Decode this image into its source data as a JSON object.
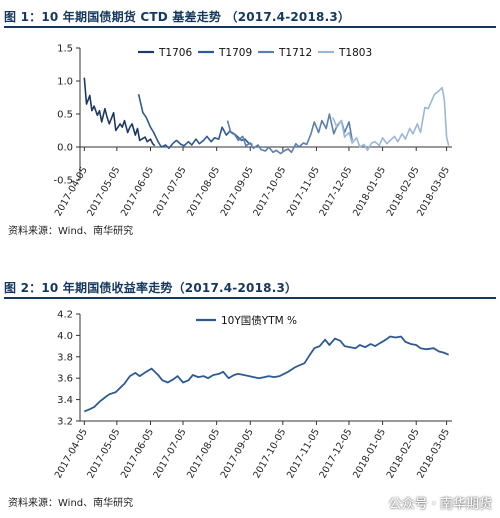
{
  "figure1": {
    "title": "图 1：10 年期国债期货 CTD 基差走势 （2017.4-2018.3）",
    "source": "资料来源：Wind、南华研究"
  },
  "figure2": {
    "title": "图 2：10 年期国债收益率走势（2017.4-2018.3）",
    "source": "资料来源：Wind、南华研究"
  },
  "watermark": "公众号 · 南华期货",
  "chart_data": [
    {
      "type": "line",
      "title": "",
      "xlabel": "",
      "ylabel": "",
      "x_ticks": [
        "2017-04-05",
        "2017-05-05",
        "2017-06-05",
        "2017-07-05",
        "2017-08-05",
        "2017-09-05",
        "2017-10-05",
        "2017-11-05",
        "2017-12-05",
        "2018-01-05",
        "2018-02-05",
        "2018-03-05"
      ],
      "y_ticks": [
        "-0.5",
        "0.0",
        "0.5",
        "1.0",
        "1.5"
      ],
      "ylim": [
        -0.5,
        1.5
      ],
      "xlim": [
        "2017-04-01",
        "2018-03-10"
      ],
      "grid": false,
      "legend_position": "top",
      "series": [
        {
          "name": "T1706",
          "color": "#1f3864",
          "x": [
            "2017-04-05",
            "2017-04-07",
            "2017-04-10",
            "2017-04-12",
            "2017-04-14",
            "2017-04-17",
            "2017-04-19",
            "2017-04-21",
            "2017-04-24",
            "2017-04-26",
            "2017-04-28",
            "2017-05-02",
            "2017-05-04",
            "2017-05-08",
            "2017-05-10",
            "2017-05-12",
            "2017-05-15",
            "2017-05-17",
            "2017-05-19",
            "2017-05-22",
            "2017-05-24",
            "2017-05-26",
            "2017-05-31",
            "2017-06-02",
            "2017-06-05",
            "2017-06-07",
            "2017-06-09"
          ],
          "y": [
            1.05,
            0.65,
            0.78,
            0.55,
            0.62,
            0.48,
            0.55,
            0.38,
            0.58,
            0.45,
            0.35,
            0.52,
            0.25,
            0.35,
            0.3,
            0.4,
            0.22,
            0.3,
            0.35,
            0.18,
            0.28,
            0.1,
            0.15,
            0.08,
            0.12,
            0.05,
            0.02
          ]
        },
        {
          "name": "T1709",
          "color": "#2e5a93",
          "x": [
            "2017-05-25",
            "2017-05-29",
            "2017-06-01",
            "2017-06-05",
            "2017-06-08",
            "2017-06-12",
            "2017-06-15",
            "2017-06-19",
            "2017-06-22",
            "2017-06-26",
            "2017-06-29",
            "2017-07-03",
            "2017-07-06",
            "2017-07-10",
            "2017-07-13",
            "2017-07-17",
            "2017-07-20",
            "2017-07-24",
            "2017-07-27",
            "2017-07-31",
            "2017-08-03",
            "2017-08-07",
            "2017-08-10",
            "2017-08-14",
            "2017-08-17",
            "2017-08-21",
            "2017-08-24",
            "2017-08-28",
            "2017-08-31",
            "2017-09-04",
            "2017-09-07"
          ],
          "y": [
            0.8,
            0.52,
            0.45,
            0.3,
            0.22,
            0.08,
            0.0,
            0.03,
            -0.02,
            0.06,
            0.1,
            0.04,
            0.02,
            0.08,
            0.03,
            0.12,
            0.05,
            0.1,
            0.16,
            0.08,
            0.14,
            0.12,
            0.3,
            0.18,
            0.24,
            0.2,
            0.16,
            0.1,
            0.12,
            0.05,
            0.04
          ]
        },
        {
          "name": "T1712",
          "color": "#5b7fae",
          "x": [
            "2017-08-15",
            "2017-08-18",
            "2017-08-22",
            "2017-08-25",
            "2017-08-29",
            "2017-09-01",
            "2017-09-05",
            "2017-09-08",
            "2017-09-12",
            "2017-09-15",
            "2017-09-19",
            "2017-09-22",
            "2017-09-26",
            "2017-09-29",
            "2017-10-03",
            "2017-10-06",
            "2017-10-10",
            "2017-10-13",
            "2017-10-17",
            "2017-10-20",
            "2017-10-24",
            "2017-10-27",
            "2017-10-31",
            "2017-11-03",
            "2017-11-07",
            "2017-11-10",
            "2017-11-14",
            "2017-11-17",
            "2017-11-21",
            "2017-11-24",
            "2017-11-28",
            "2017-12-01",
            "2017-12-05",
            "2017-12-08"
          ],
          "y": [
            0.4,
            0.22,
            0.18,
            0.1,
            0.16,
            0.02,
            0.06,
            -0.02,
            0.03,
            -0.04,
            -0.06,
            0.0,
            -0.08,
            -0.05,
            -0.1,
            -0.06,
            -0.03,
            -0.08,
            0.05,
            0.0,
            0.06,
            0.04,
            0.2,
            0.38,
            0.22,
            0.4,
            0.28,
            0.5,
            0.2,
            0.32,
            0.4,
            0.22,
            0.38,
            0.1
          ]
        },
        {
          "name": "T1803",
          "color": "#9ab7d9",
          "x": [
            "2017-11-20",
            "2017-11-24",
            "2017-11-28",
            "2017-12-01",
            "2017-12-05",
            "2017-12-08",
            "2017-12-12",
            "2017-12-15",
            "2017-12-19",
            "2017-12-22",
            "2017-12-26",
            "2017-12-29",
            "2018-01-02",
            "2018-01-05",
            "2018-01-09",
            "2018-01-12",
            "2018-01-16",
            "2018-01-19",
            "2018-01-23",
            "2018-01-26",
            "2018-01-30",
            "2018-02-02",
            "2018-02-06",
            "2018-02-09",
            "2018-02-13",
            "2018-02-16",
            "2018-02-22",
            "2018-02-26",
            "2018-03-01",
            "2018-03-03",
            "2018-03-05",
            "2018-03-07"
          ],
          "y": [
            0.45,
            0.3,
            0.4,
            0.15,
            0.22,
            0.06,
            0.14,
            0.0,
            0.04,
            -0.05,
            0.06,
            0.08,
            0.02,
            0.14,
            0.05,
            0.1,
            0.16,
            0.08,
            0.2,
            0.12,
            0.28,
            0.2,
            0.35,
            0.22,
            0.6,
            0.58,
            0.8,
            0.85,
            0.9,
            0.7,
            0.15,
            0.02
          ]
        }
      ]
    },
    {
      "type": "line",
      "title": "",
      "xlabel": "",
      "ylabel": "",
      "x_ticks": [
        "2017-04-05",
        "2017-05-05",
        "2017-06-05",
        "2017-07-05",
        "2017-08-05",
        "2017-09-05",
        "2017-10-05",
        "2017-11-05",
        "2017-12-05",
        "2018-01-05",
        "2018-02-05",
        "2018-03-05"
      ],
      "y_ticks": [
        "3.2",
        "3.4",
        "3.6",
        "3.8",
        "4.0",
        "4.2"
      ],
      "ylim": [
        3.2,
        4.2
      ],
      "xlim": [
        "2017-04-01",
        "2018-03-10"
      ],
      "grid": false,
      "legend_position": "top",
      "series": [
        {
          "name": "10Y国债YTM %",
          "color": "#2e5a93",
          "x": [
            "2017-04-05",
            "2017-04-10",
            "2017-04-14",
            "2017-04-19",
            "2017-04-24",
            "2017-04-28",
            "2017-05-04",
            "2017-05-09",
            "2017-05-12",
            "2017-05-17",
            "2017-05-22",
            "2017-05-26",
            "2017-06-01",
            "2017-06-06",
            "2017-06-12",
            "2017-06-16",
            "2017-06-21",
            "2017-06-26",
            "2017-06-30",
            "2017-07-05",
            "2017-07-10",
            "2017-07-14",
            "2017-07-19",
            "2017-07-24",
            "2017-07-28",
            "2017-08-02",
            "2017-08-07",
            "2017-08-11",
            "2017-08-16",
            "2017-08-21",
            "2017-08-25",
            "2017-08-30",
            "2017-09-04",
            "2017-09-08",
            "2017-09-13",
            "2017-09-18",
            "2017-09-22",
            "2017-09-27",
            "2017-10-02",
            "2017-10-10",
            "2017-10-16",
            "2017-10-20",
            "2017-10-25",
            "2017-10-30",
            "2017-11-03",
            "2017-11-08",
            "2017-11-13",
            "2017-11-17",
            "2017-11-22",
            "2017-11-27",
            "2017-12-01",
            "2017-12-06",
            "2017-12-11",
            "2017-12-15",
            "2017-12-20",
            "2017-12-25",
            "2017-12-29",
            "2018-01-03",
            "2018-01-08",
            "2018-01-12",
            "2018-01-17",
            "2018-01-22",
            "2018-01-26",
            "2018-01-31",
            "2018-02-05",
            "2018-02-09",
            "2018-02-14",
            "2018-02-21",
            "2018-02-26",
            "2018-03-02",
            "2018-03-07"
          ],
          "y": [
            3.29,
            3.31,
            3.33,
            3.38,
            3.42,
            3.45,
            3.47,
            3.52,
            3.55,
            3.62,
            3.65,
            3.62,
            3.66,
            3.69,
            3.63,
            3.58,
            3.56,
            3.59,
            3.62,
            3.56,
            3.58,
            3.63,
            3.61,
            3.62,
            3.6,
            3.63,
            3.64,
            3.66,
            3.6,
            3.63,
            3.64,
            3.63,
            3.62,
            3.61,
            3.6,
            3.61,
            3.62,
            3.61,
            3.62,
            3.66,
            3.7,
            3.72,
            3.74,
            3.82,
            3.88,
            3.9,
            3.96,
            3.91,
            3.97,
            3.95,
            3.9,
            3.89,
            3.88,
            3.91,
            3.89,
            3.92,
            3.9,
            3.93,
            3.96,
            3.99,
            3.98,
            3.99,
            3.94,
            3.92,
            3.91,
            3.88,
            3.87,
            3.88,
            3.85,
            3.84,
            3.82
          ]
        }
      ]
    }
  ]
}
